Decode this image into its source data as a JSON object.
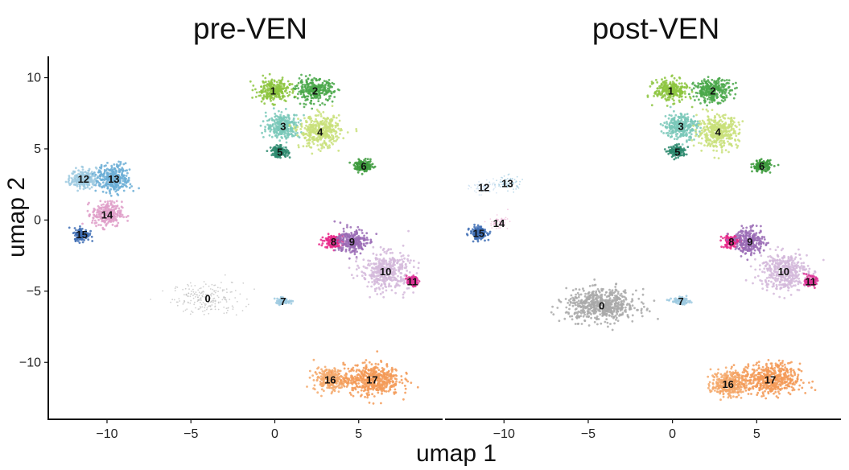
{
  "chart_data": [
    {
      "type": "scatter",
      "title": "pre-VEN",
      "xlabel": "umap 1",
      "ylabel": "umap 2",
      "xlim": [
        -13.5,
        10.0
      ],
      "ylim": [
        -14.0,
        11.5
      ],
      "xticks": [
        -10,
        -5,
        0,
        5
      ],
      "yticks": [
        -10,
        -5,
        0,
        5,
        10
      ],
      "tick_labels_x": [
        "−10",
        "−5",
        "0",
        "5"
      ],
      "tick_labels_y": [
        "−10",
        "−5",
        "0",
        "5",
        "10"
      ],
      "grid": false,
      "clusters": [
        {
          "label": "0",
          "x": -4.0,
          "y": -5.5,
          "sx": 1.9,
          "sy": 1.0,
          "color": "#bdbdbd",
          "density": 0.35
        },
        {
          "label": "1",
          "x": -0.1,
          "y": 9.1,
          "sx": 0.9,
          "sy": 0.7,
          "color": "#8dc63f",
          "density": 1.0
        },
        {
          "label": "2",
          "x": 2.4,
          "y": 9.1,
          "sx": 1.0,
          "sy": 0.7,
          "color": "#4aa84a",
          "density": 1.0
        },
        {
          "label": "3",
          "x": 0.5,
          "y": 6.6,
          "sx": 0.9,
          "sy": 0.8,
          "color": "#79c8b8",
          "density": 1.0
        },
        {
          "label": "4",
          "x": 2.7,
          "y": 6.2,
          "sx": 1.1,
          "sy": 1.0,
          "color": "#c9e07a",
          "density": 1.0
        },
        {
          "label": "5",
          "x": 0.3,
          "y": 4.8,
          "sx": 0.45,
          "sy": 0.35,
          "color": "#2d8a6e",
          "density": 1.0
        },
        {
          "label": "6",
          "x": 5.3,
          "y": 3.8,
          "sx": 0.5,
          "sy": 0.35,
          "color": "#3c9a3c",
          "density": 0.9
        },
        {
          "label": "7",
          "x": 0.5,
          "y": -5.7,
          "sx": 0.5,
          "sy": 0.2,
          "color": "#9ecae1",
          "density": 0.5
        },
        {
          "label": "8",
          "x": 3.5,
          "y": -1.5,
          "sx": 0.5,
          "sy": 0.4,
          "color": "#e7298a",
          "density": 0.9
        },
        {
          "label": "9",
          "x": 4.6,
          "y": -1.5,
          "sx": 0.8,
          "sy": 0.8,
          "color": "#9a6bb5",
          "density": 0.9
        },
        {
          "label": "10",
          "x": 6.6,
          "y": -3.6,
          "sx": 1.3,
          "sy": 1.2,
          "color": "#d4b9da",
          "density": 0.8
        },
        {
          "label": "11",
          "x": 8.2,
          "y": -4.3,
          "sx": 0.3,
          "sy": 0.3,
          "color": "#dd3497",
          "density": 0.8
        },
        {
          "label": "12",
          "x": -11.4,
          "y": 2.9,
          "sx": 0.7,
          "sy": 0.6,
          "color": "#9ecae1",
          "density": 1.0
        },
        {
          "label": "13",
          "x": -9.6,
          "y": 2.9,
          "sx": 0.9,
          "sy": 0.9,
          "color": "#6baed6",
          "density": 1.0
        },
        {
          "label": "14",
          "x": -10.0,
          "y": 0.4,
          "sx": 0.8,
          "sy": 0.8,
          "color": "#df9fc9",
          "density": 1.0
        },
        {
          "label": "15",
          "x": -11.5,
          "y": -1.0,
          "sx": 0.4,
          "sy": 0.4,
          "color": "#3f6fb5",
          "density": 1.0
        },
        {
          "label": "16",
          "x": 3.3,
          "y": -11.2,
          "sx": 0.9,
          "sy": 0.7,
          "color": "#f5a86a",
          "density": 0.9
        },
        {
          "label": "17",
          "x": 5.8,
          "y": -11.2,
          "sx": 1.5,
          "sy": 1.0,
          "color": "#f39a57",
          "density": 1.0
        }
      ]
    },
    {
      "type": "scatter",
      "title": "post-VEN",
      "xlabel": "umap 1",
      "ylabel": "",
      "xlim": [
        -13.5,
        10.0
      ],
      "ylim": [
        -14.0,
        11.5
      ],
      "xticks": [
        -10,
        -5,
        0,
        5
      ],
      "yticks": [],
      "tick_labels_x": [
        "−10",
        "−5",
        "0",
        "5"
      ],
      "tick_labels_y": [],
      "grid": false,
      "clusters": [
        {
          "label": "0",
          "x": -4.2,
          "y": -6.0,
          "sx": 1.9,
          "sy": 1.0,
          "color": "#a9a9a9",
          "density": 1.0
        },
        {
          "label": "1",
          "x": -0.1,
          "y": 9.1,
          "sx": 0.9,
          "sy": 0.7,
          "color": "#8dc63f",
          "density": 1.0
        },
        {
          "label": "2",
          "x": 2.4,
          "y": 9.1,
          "sx": 1.0,
          "sy": 0.7,
          "color": "#4aa84a",
          "density": 1.0
        },
        {
          "label": "3",
          "x": 0.5,
          "y": 6.6,
          "sx": 0.9,
          "sy": 0.8,
          "color": "#79c8b8",
          "density": 1.0
        },
        {
          "label": "4",
          "x": 2.7,
          "y": 6.2,
          "sx": 1.1,
          "sy": 1.0,
          "color": "#c9e07a",
          "density": 1.0
        },
        {
          "label": "5",
          "x": 0.3,
          "y": 4.8,
          "sx": 0.45,
          "sy": 0.35,
          "color": "#2d8a6e",
          "density": 1.0
        },
        {
          "label": "6",
          "x": 5.3,
          "y": 3.8,
          "sx": 0.5,
          "sy": 0.35,
          "color": "#3c9a3c",
          "density": 0.9
        },
        {
          "label": "7",
          "x": 0.5,
          "y": -5.7,
          "sx": 0.5,
          "sy": 0.2,
          "color": "#9ecae1",
          "density": 0.7
        },
        {
          "label": "8",
          "x": 3.5,
          "y": -1.5,
          "sx": 0.5,
          "sy": 0.4,
          "color": "#e7298a",
          "density": 0.9
        },
        {
          "label": "9",
          "x": 4.6,
          "y": -1.5,
          "sx": 0.8,
          "sy": 0.8,
          "color": "#9a6bb5",
          "density": 0.9
        },
        {
          "label": "10",
          "x": 6.6,
          "y": -3.6,
          "sx": 1.3,
          "sy": 1.2,
          "color": "#d4b9da",
          "density": 0.8
        },
        {
          "label": "11",
          "x": 8.2,
          "y": -4.3,
          "sx": 0.3,
          "sy": 0.3,
          "color": "#dd3497",
          "density": 0.8
        },
        {
          "label": "12",
          "x": -11.2,
          "y": 2.3,
          "sx": 0.7,
          "sy": 0.4,
          "color": "#c6dbef",
          "density": 0.35
        },
        {
          "label": "13",
          "x": -9.8,
          "y": 2.6,
          "sx": 0.8,
          "sy": 0.5,
          "color": "#9ecae1",
          "density": 0.35
        },
        {
          "label": "14",
          "x": -10.3,
          "y": -0.2,
          "sx": 0.5,
          "sy": 0.4,
          "color": "#efb6d9",
          "density": 0.35
        },
        {
          "label": "15",
          "x": -11.5,
          "y": -0.9,
          "sx": 0.45,
          "sy": 0.4,
          "color": "#3f6fb5",
          "density": 1.0
        },
        {
          "label": "16",
          "x": 3.3,
          "y": -11.5,
          "sx": 0.9,
          "sy": 0.8,
          "color": "#f5a86a",
          "density": 1.0
        },
        {
          "label": "17",
          "x": 5.8,
          "y": -11.2,
          "sx": 1.6,
          "sy": 1.0,
          "color": "#f39a57",
          "density": 1.0
        }
      ]
    }
  ]
}
